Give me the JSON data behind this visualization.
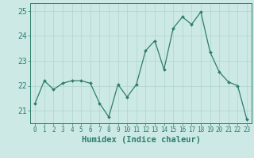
{
  "x": [
    0,
    1,
    2,
    3,
    4,
    5,
    6,
    7,
    8,
    9,
    10,
    11,
    12,
    13,
    14,
    15,
    16,
    17,
    18,
    19,
    20,
    21,
    22,
    23
  ],
  "y": [
    21.3,
    22.2,
    21.85,
    22.1,
    22.2,
    22.2,
    22.1,
    21.3,
    20.75,
    22.05,
    21.55,
    22.05,
    23.4,
    23.8,
    22.65,
    24.3,
    24.75,
    24.45,
    24.95,
    23.35,
    22.55,
    22.15,
    22.0,
    20.65
  ],
  "xlabel": "Humidex (Indice chaleur)",
  "ylim": [
    20.5,
    25.3
  ],
  "xlim": [
    -0.5,
    23.5
  ],
  "yticks": [
    21,
    22,
    23,
    24,
    25
  ],
  "xtick_labels": [
    "0",
    "1",
    "2",
    "3",
    "4",
    "5",
    "6",
    "7",
    "8",
    "9",
    "10",
    "11",
    "12",
    "13",
    "14",
    "15",
    "16",
    "17",
    "18",
    "19",
    "20",
    "21",
    "22",
    "23"
  ],
  "line_color": "#2e7d6e",
  "marker_color": "#2e7d6e",
  "bg_color": "#cce9e5",
  "grid_color": "#afd4cf",
  "axis_color": "#2e7d6e",
  "tick_color": "#2e7d6e",
  "label_color": "#2e7d6e",
  "ylabel_fontsize": 6.5,
  "xlabel_fontsize": 7.5,
  "ytick_fontsize": 7,
  "xtick_fontsize": 5.5
}
